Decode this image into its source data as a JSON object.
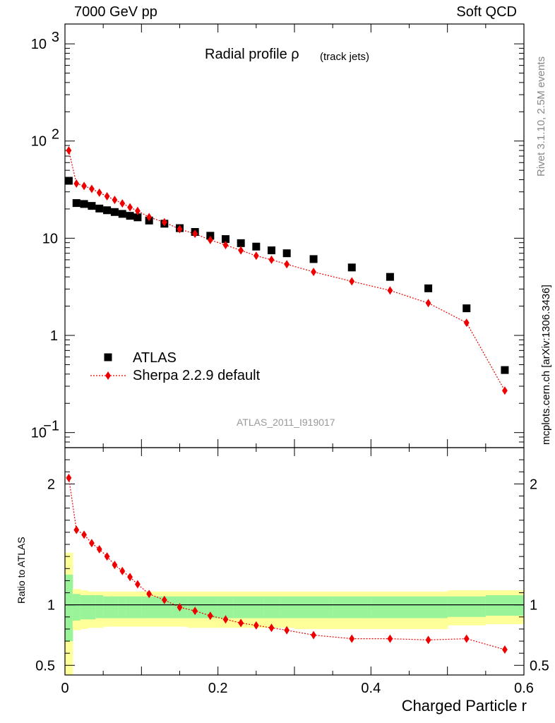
{
  "header": {
    "left": "7000 GeV pp",
    "right": "Soft QCD"
  },
  "title": {
    "main": "Radial profile ρ",
    "sub": "(track jets)"
  },
  "side": {
    "rivet": "Rivet 3.1.10,  2.5M events",
    "mcplots": "mcplots.cern.ch [arXiv:1306.3436]"
  },
  "watermark": "ATLAS_2011_I919017",
  "chart_data": {
    "type": "scatter",
    "xlabel": "Charged Particle r",
    "ratio_ylabel": "Ratio to ATLAS",
    "xlim": [
      0,
      0.6
    ],
    "main": {
      "ylog": true,
      "ylim": [
        0.07,
        1600
      ],
      "yticks": [
        {
          "v": 0.1,
          "base": "10",
          "exp": "−1"
        },
        {
          "v": 1,
          "base": "1",
          "exp": ""
        },
        {
          "v": 10,
          "base": "10",
          "exp": ""
        },
        {
          "v": 100,
          "base": "10",
          "exp": "2"
        },
        {
          "v": 1000,
          "base": "10",
          "exp": "3"
        }
      ]
    },
    "ratio": {
      "ylim": [
        0.42,
        2.3
      ],
      "yticks": [
        0.5,
        1,
        2
      ],
      "yticklabels": [
        "0.5",
        "1",
        "2"
      ]
    },
    "xticks": [
      0,
      0.2,
      0.4,
      0.6
    ],
    "xticklabels": [
      "0",
      "0.2",
      "0.4",
      "0.6"
    ],
    "legend_position": "bottom-left",
    "series": [
      {
        "name": "ATLAS",
        "marker": "square",
        "color": "#000000",
        "x": [
          0.005,
          0.015,
          0.025,
          0.035,
          0.045,
          0.055,
          0.065,
          0.075,
          0.085,
          0.095,
          0.11,
          0.13,
          0.15,
          0.17,
          0.19,
          0.21,
          0.23,
          0.25,
          0.27,
          0.29,
          0.325,
          0.375,
          0.425,
          0.475,
          0.525,
          0.575
        ],
        "y": [
          39,
          23,
          22.5,
          21.5,
          20.2,
          19.4,
          18.6,
          17.8,
          17.0,
          16.4,
          15.2,
          14.1,
          12.7,
          11.6,
          10.6,
          9.8,
          8.9,
          8.2,
          7.5,
          7.0,
          6.1,
          5.0,
          4.0,
          3.05,
          1.9,
          0.44
        ]
      },
      {
        "name": "Sherpa 2.2.9 default",
        "marker": "diamond",
        "color": "#ee0000",
        "x": [
          0.005,
          0.015,
          0.025,
          0.035,
          0.045,
          0.055,
          0.065,
          0.075,
          0.085,
          0.095,
          0.11,
          0.13,
          0.15,
          0.17,
          0.19,
          0.21,
          0.23,
          0.25,
          0.27,
          0.29,
          0.325,
          0.375,
          0.425,
          0.475,
          0.525,
          0.575
        ],
        "y": [
          80,
          36.5,
          34.5,
          32.2,
          29.4,
          27.0,
          24.8,
          22.8,
          20.8,
          19.1,
          16.5,
          14.6,
          12.4,
          11.1,
          9.6,
          8.5,
          7.5,
          6.6,
          6.0,
          5.4,
          4.5,
          3.6,
          2.9,
          2.15,
          1.35,
          0.27
        ],
        "ratio": [
          2.05,
          1.62,
          1.58,
          1.51,
          1.46,
          1.4,
          1.33,
          1.28,
          1.23,
          1.17,
          1.09,
          1.04,
          0.98,
          0.95,
          0.91,
          0.88,
          0.85,
          0.83,
          0.81,
          0.79,
          0.75,
          0.72,
          0.72,
          0.71,
          0.72,
          0.63
        ]
      }
    ],
    "bands": {
      "edges": [
        0,
        0.01,
        0.02,
        0.03,
        0.04,
        0.05,
        0.06,
        0.07,
        0.08,
        0.09,
        0.1,
        0.12,
        0.14,
        0.16,
        0.18,
        0.2,
        0.22,
        0.24,
        0.26,
        0.28,
        0.3,
        0.35,
        0.4,
        0.45,
        0.5,
        0.55,
        0.6
      ],
      "inner_color": "#99f399",
      "outer_color": "#ffff99",
      "inner": [
        [
          0.7,
          1.25
        ],
        [
          0.87,
          1.09
        ],
        [
          0.88,
          1.08
        ],
        [
          0.88,
          1.08
        ],
        [
          0.89,
          1.08
        ],
        [
          0.89,
          1.07
        ],
        [
          0.89,
          1.07
        ],
        [
          0.89,
          1.07
        ],
        [
          0.89,
          1.07
        ],
        [
          0.89,
          1.07
        ],
        [
          0.89,
          1.07
        ],
        [
          0.89,
          1.07
        ],
        [
          0.89,
          1.07
        ],
        [
          0.89,
          1.07
        ],
        [
          0.89,
          1.07
        ],
        [
          0.89,
          1.07
        ],
        [
          0.89,
          1.07
        ],
        [
          0.89,
          1.07
        ],
        [
          0.89,
          1.07
        ],
        [
          0.89,
          1.07
        ],
        [
          0.89,
          1.07
        ],
        [
          0.89,
          1.07
        ],
        [
          0.89,
          1.07
        ],
        [
          0.89,
          1.07
        ],
        [
          0.9,
          1.07
        ],
        [
          0.91,
          1.08
        ]
      ],
      "outer": [
        [
          0.36,
          1.43
        ],
        [
          0.79,
          1.13
        ],
        [
          0.8,
          1.12
        ],
        [
          0.81,
          1.11
        ],
        [
          0.81,
          1.11
        ],
        [
          0.82,
          1.11
        ],
        [
          0.82,
          1.11
        ],
        [
          0.82,
          1.11
        ],
        [
          0.82,
          1.11
        ],
        [
          0.82,
          1.11
        ],
        [
          0.82,
          1.11
        ],
        [
          0.82,
          1.11
        ],
        [
          0.82,
          1.11
        ],
        [
          0.81,
          1.11
        ],
        [
          0.81,
          1.11
        ],
        [
          0.81,
          1.11
        ],
        [
          0.81,
          1.11
        ],
        [
          0.81,
          1.11
        ],
        [
          0.81,
          1.11
        ],
        [
          0.81,
          1.11
        ],
        [
          0.8,
          1.11
        ],
        [
          0.8,
          1.11
        ],
        [
          0.8,
          1.11
        ],
        [
          0.8,
          1.11
        ],
        [
          0.83,
          1.12
        ],
        [
          0.84,
          1.12
        ]
      ]
    }
  }
}
